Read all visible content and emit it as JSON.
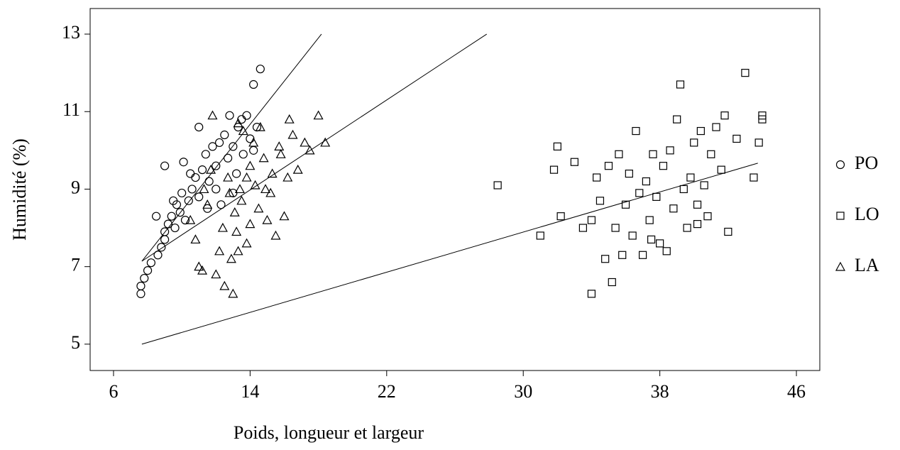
{
  "chart_data": {
    "type": "scatter",
    "xlabel": "Poids, longueur et largeur",
    "ylabel": "Humidité (%)",
    "xlim": [
      4.63,
      47.37
    ],
    "ylim": [
      4.32,
      13.66
    ],
    "xticks": [
      6,
      14,
      22,
      30,
      38,
      46
    ],
    "yticks": [
      5,
      7,
      9,
      11,
      13
    ],
    "grid": false,
    "legend": "right",
    "series": [
      {
        "name": "PO",
        "color": "#000000",
        "marker": "circle",
        "x": [
          7.6,
          7.6,
          7.8,
          8,
          8.2,
          8.6,
          8.8,
          9,
          9,
          9.2,
          9.4,
          9.6,
          9.7,
          9.9,
          10,
          10.1,
          10.2,
          10.4,
          10.6,
          10.8,
          11,
          11,
          11.2,
          11.4,
          11.6,
          11.8,
          12,
          12.2,
          12.3,
          12.5,
          12.7,
          12.8,
          13,
          13.2,
          13.3,
          13.5,
          13.6,
          13.8,
          14,
          14.2,
          14.6,
          14.4,
          9,
          8.5,
          11.5,
          13,
          12,
          10.5,
          14.2,
          9.5
        ],
        "values": [
          6.3,
          6.5,
          6.7,
          6.9,
          7.1,
          7.3,
          7.5,
          7.7,
          7.9,
          8.1,
          8.3,
          8.0,
          8.6,
          8.4,
          8.9,
          9.7,
          8.2,
          8.7,
          9.0,
          9.3,
          8.8,
          10.6,
          9.5,
          9.9,
          9.2,
          10.1,
          9.6,
          10.2,
          8.6,
          10.4,
          9.8,
          10.9,
          10.1,
          9.4,
          10.6,
          10.8,
          9.9,
          10.9,
          10.3,
          11.7,
          12.1,
          10.6,
          9.6,
          8.3,
          8.5,
          8.9,
          9.0,
          9.4,
          10.0,
          8.7
        ]
      },
      {
        "name": "LO",
        "color": "#000000",
        "marker": "square",
        "x": [
          28.5,
          31,
          31.8,
          32,
          32.2,
          33,
          33.5,
          34,
          34,
          34.3,
          34.5,
          34.8,
          35,
          35.2,
          35.4,
          35.6,
          35.8,
          36,
          36.2,
          36.4,
          36.6,
          36.8,
          37,
          37.2,
          37.4,
          37.6,
          37.8,
          38,
          38.2,
          38.4,
          38.6,
          38.8,
          39,
          39.2,
          39.4,
          39.6,
          39.8,
          40,
          40.2,
          40.4,
          40.6,
          40.8,
          41,
          41.3,
          41.6,
          41.8,
          42,
          42.5,
          43,
          43.5,
          43.8,
          44,
          44,
          37.5,
          40.2
        ],
        "values": [
          9.1,
          7.8,
          9.5,
          10.1,
          8.3,
          9.7,
          8.0,
          6.3,
          8.2,
          9.3,
          8.7,
          7.2,
          9.6,
          6.6,
          8.0,
          9.9,
          7.3,
          8.6,
          9.4,
          7.8,
          10.5,
          8.9,
          7.3,
          9.2,
          8.2,
          9.9,
          8.8,
          7.6,
          9.6,
          7.4,
          10.0,
          8.5,
          10.8,
          11.7,
          9.0,
          8.0,
          9.3,
          10.2,
          8.6,
          10.5,
          9.1,
          8.3,
          9.9,
          10.6,
          9.5,
          10.9,
          7.9,
          10.3,
          12.0,
          9.3,
          10.2,
          10.8,
          10.9,
          7.7,
          8.1
        ]
      },
      {
        "name": "LA",
        "color": "#000000",
        "marker": "triangle",
        "x": [
          10.5,
          10.8,
          11,
          11.2,
          11.5,
          11.7,
          12,
          12.2,
          12.4,
          12.5,
          12.7,
          12.9,
          13,
          13.1,
          13.2,
          13.3,
          13.4,
          13.5,
          13.6,
          13.8,
          14,
          14,
          14.2,
          14.3,
          14.5,
          14.6,
          14.8,
          15,
          15.2,
          15.3,
          15.5,
          15.7,
          16,
          16.2,
          16.3,
          16.5,
          16.8,
          17.2,
          17.5,
          18,
          18.4,
          11.8,
          12.8,
          13.8,
          11.3,
          14.9,
          13.3,
          15.8
        ],
        "values": [
          8.2,
          7.7,
          7.0,
          6.9,
          8.6,
          9.5,
          6.8,
          7.4,
          8.0,
          6.5,
          9.3,
          7.2,
          6.3,
          8.4,
          7.9,
          10.7,
          9.0,
          8.7,
          10.5,
          7.6,
          9.6,
          8.1,
          10.2,
          9.1,
          8.5,
          10.6,
          9.8,
          8.2,
          8.9,
          9.4,
          7.8,
          10.1,
          8.3,
          9.3,
          10.8,
          10.4,
          9.5,
          10.2,
          10.0,
          10.9,
          10.2,
          10.9,
          8.9,
          9.3,
          9.0,
          9.0,
          7.4,
          9.9
        ]
      }
    ],
    "fit_lines": [
      {
        "x": [
          7.66,
          18.18
        ],
        "y": [
          7.14,
          13
        ]
      },
      {
        "x": [
          7.66,
          43.74
        ],
        "y": [
          5,
          9.67
        ]
      },
      {
        "x": [
          7.66,
          27.86
        ],
        "y": [
          7.14,
          13
        ]
      }
    ]
  }
}
